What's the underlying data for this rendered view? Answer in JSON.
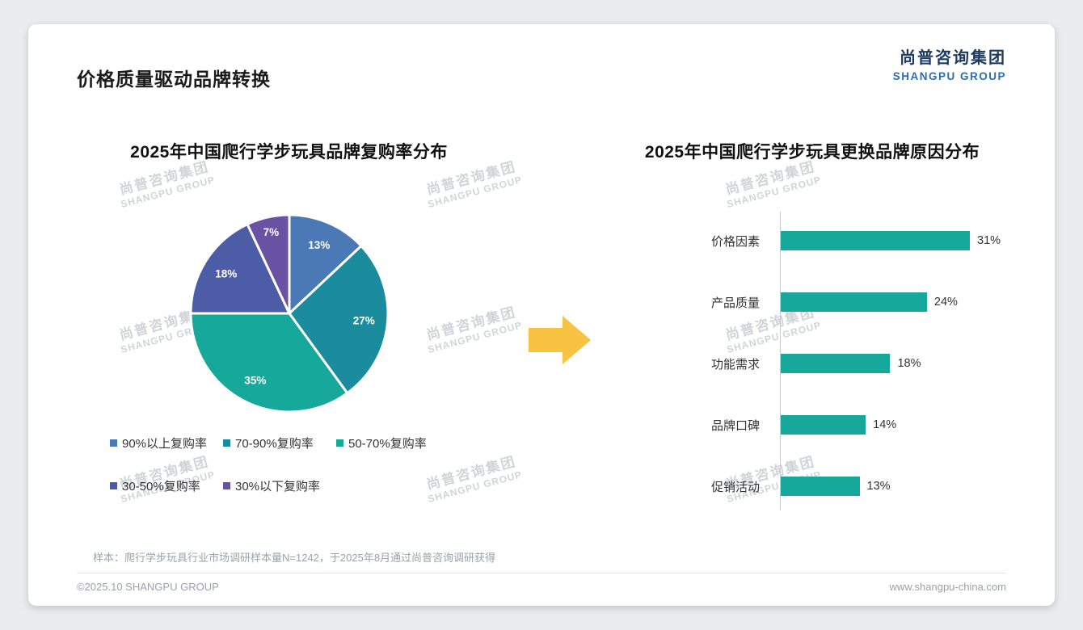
{
  "page": {
    "title": "价格质量驱动品牌转换",
    "logo": {
      "cn": "尚普咨询集团",
      "en": "SHANGPU GROUP"
    },
    "watermark": {
      "cn": "尚普咨询集团",
      "en": "SHANGPU GROUP"
    },
    "footnote": "样本：爬行学步玩具行业市场调研样本量N=1242，于2025年8月通过尚普咨询调研获得",
    "footer": {
      "left": "©2025.10 SHANGPU GROUP",
      "right": "www.shangpu-china.com"
    }
  },
  "colors": {
    "arrow": "#F9C342",
    "logo_cn": "#1D3A5F",
    "logo_en": "#2D6CB0",
    "bar": "#16A89B"
  },
  "chart_data": [
    {
      "type": "pie",
      "title": "2025年中国爬行学步玩具品牌复购率分布",
      "labels": [
        "90%以上复购率",
        "70-90%复购率",
        "50-70%复购率",
        "30-50%复购率",
        "30%以下复购率"
      ],
      "values": [
        13,
        27,
        35,
        18,
        7
      ],
      "value_labels": [
        "13%",
        "27%",
        "35%",
        "18%",
        "7%"
      ],
      "colors": [
        "#4A79B5",
        "#1B8B9E",
        "#16A89B",
        "#4D5CA6",
        "#6952A3"
      ],
      "start_angle_deg": -90,
      "direction": "clockwise",
      "legend_position": "bottom"
    },
    {
      "type": "bar",
      "orientation": "horizontal",
      "title": "2025年中国爬行学步玩具更换品牌原因分布",
      "categories": [
        "价格因素",
        "产品质量",
        "功能需求",
        "品牌口碑",
        "促销活动"
      ],
      "values": [
        31,
        24,
        18,
        14,
        13
      ],
      "value_labels": [
        "31%",
        "24%",
        "18%",
        "14%",
        "13%"
      ],
      "bar_color": "#16A89B",
      "xlim": [
        0,
        35
      ],
      "grid": false,
      "legend_position": "none"
    }
  ]
}
